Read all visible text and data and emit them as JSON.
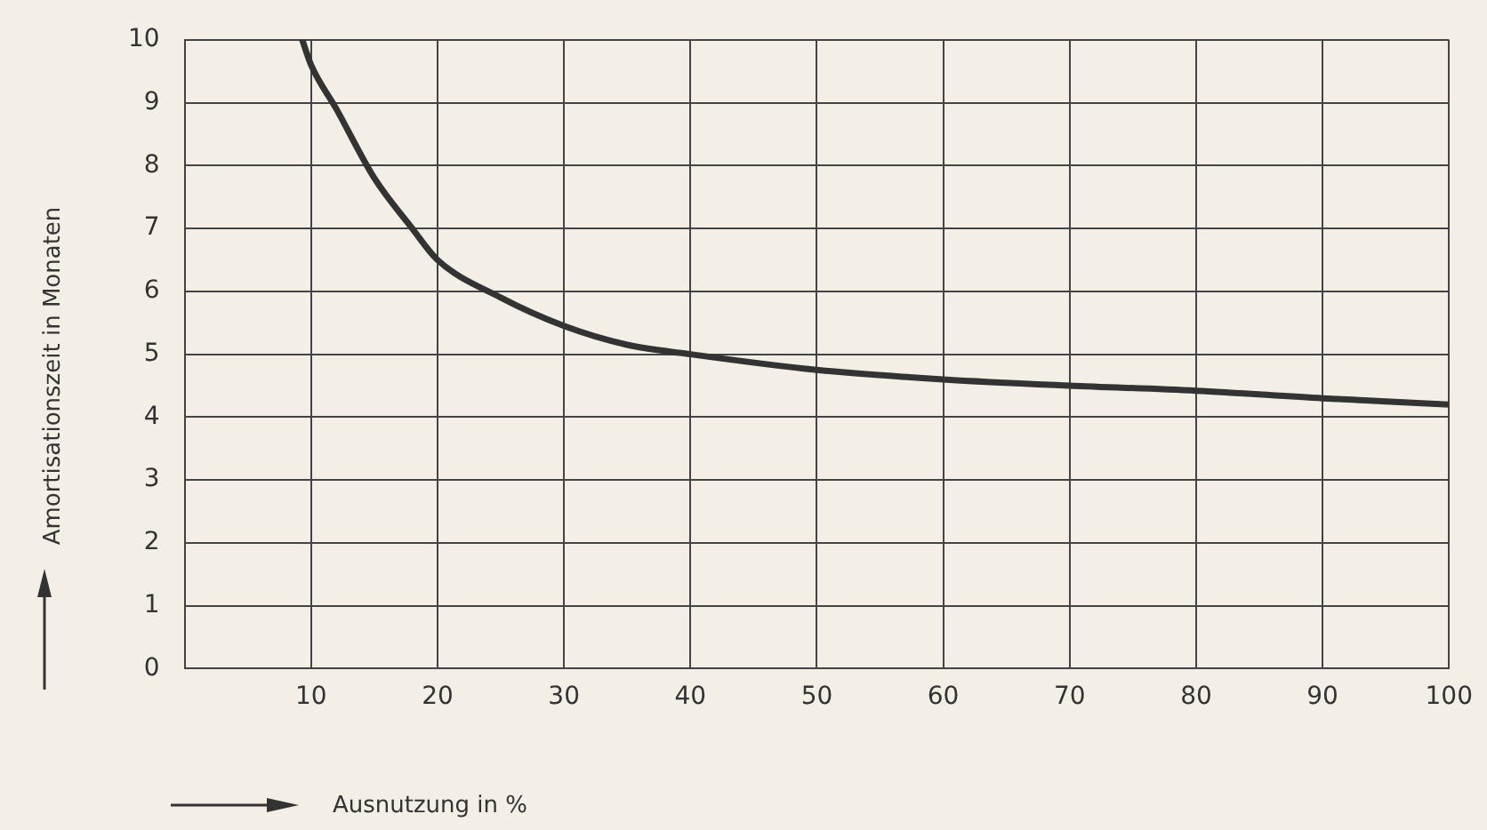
{
  "chart_data": {
    "type": "line",
    "xlabel": "Ausnutzung in %",
    "ylabel": "Amortisationszeit in Monaten",
    "x": [
      9.3,
      10,
      12,
      15,
      18,
      20,
      25,
      30,
      35,
      40,
      50,
      60,
      70,
      80,
      90,
      100
    ],
    "series": [
      {
        "color": "#333333",
        "values": [
          10,
          9.6,
          8.9,
          7.8,
          7,
          6.5,
          5.9,
          5.45,
          5.15,
          5,
          4.75,
          4.6,
          4.5,
          4.42,
          4.3,
          4.2
        ]
      }
    ],
    "xlim": [
      0,
      100
    ],
    "xticks": [
      10,
      20,
      30,
      40,
      50,
      60,
      70,
      80,
      90,
      100
    ],
    "ylim": [
      0,
      10
    ],
    "yticks": [
      0,
      1,
      2,
      3,
      4,
      5,
      6,
      7,
      8,
      9,
      10
    ],
    "grid": true,
    "legend": false,
    "marker": "none",
    "line_style": "solid"
  }
}
